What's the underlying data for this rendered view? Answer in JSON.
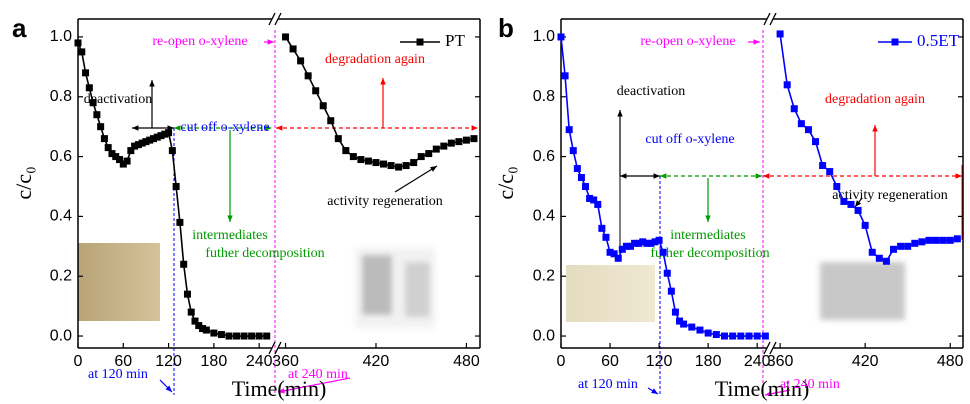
{
  "chart_data": [
    {
      "type": "line",
      "panel": "a",
      "x_label": "Time(min)",
      "y_label": "c/c₀",
      "xlim": [
        0,
        489
      ],
      "x_break": [
        257,
        355
      ],
      "ylim": [
        -0.04,
        1.06
      ],
      "xticks": [
        0,
        60,
        120,
        180,
        240,
        360,
        420,
        480
      ],
      "yticks": [
        {
          "value": 0,
          "label": "0.0"
        },
        {
          "value": 0.2,
          "label": "0.2"
        },
        {
          "value": 0.4,
          "label": "0.4"
        },
        {
          "value": 0.6,
          "label": "0.6"
        },
        {
          "value": 0.8,
          "label": "0.8"
        },
        {
          "value": 1,
          "label": "1.0"
        }
      ],
      "series": [
        {
          "name": "PT",
          "color": "#000000",
          "x": [
            0,
            5,
            10,
            15,
            20,
            25,
            30,
            35,
            40,
            45,
            50,
            55,
            60,
            65,
            70,
            75,
            80,
            85,
            90,
            95,
            100,
            105,
            110,
            115,
            120,
            125,
            130,
            135,
            140,
            145,
            150,
            155,
            160,
            165,
            170,
            180,
            190,
            200,
            210,
            220,
            230,
            240,
            250,
            360,
            365,
            370,
            375,
            380,
            385,
            390,
            395,
            400,
            405,
            410,
            415,
            420,
            425,
            430,
            435,
            440,
            445,
            450,
            455,
            460,
            465,
            470,
            475,
            480,
            485
          ],
          "values": [
            0.98,
            0.95,
            0.88,
            0.83,
            0.78,
            0.74,
            0.7,
            0.66,
            0.63,
            0.61,
            0.6,
            0.59,
            0.575,
            0.585,
            0.62,
            0.635,
            0.64,
            0.645,
            0.65,
            0.655,
            0.66,
            0.665,
            0.67,
            0.675,
            0.68,
            0.62,
            0.5,
            0.38,
            0.24,
            0.14,
            0.08,
            0.05,
            0.035,
            0.025,
            0.02,
            0.01,
            0.005,
            0,
            0,
            0,
            0,
            0,
            0,
            1,
            0.96,
            0.92,
            0.87,
            0.82,
            0.77,
            0.72,
            0.66,
            0.62,
            0.6,
            0.59,
            0.585,
            0.58,
            0.575,
            0.57,
            0.565,
            0.57,
            0.58,
            0.6,
            0.61,
            0.625,
            0.635,
            0.645,
            0.65,
            0.655,
            0.66
          ]
        }
      ],
      "annotations": [
        {
          "text": "re-open o-xylene",
          "color": "#ff00ff"
        },
        {
          "text": "deactivation",
          "color": "#000000"
        },
        {
          "text": "cut off o-xylene",
          "color": "#0000ff"
        },
        {
          "text": "degradation again",
          "color": "#ff0000"
        },
        {
          "text": "intermediates",
          "color": "#009900"
        },
        {
          "text": "futher decomposition",
          "color": "#009900"
        },
        {
          "text": "activity regeneration",
          "color": "#000000"
        },
        {
          "text": "at 120 min",
          "color": "#0000ff"
        },
        {
          "text": "at 240 min",
          "color": "#ff00ff"
        }
      ]
    },
    {
      "type": "line",
      "panel": "b",
      "x_label": "Time(min)",
      "y_label": "c/c₀",
      "xlim": [
        0,
        489
      ],
      "x_break": [
        252,
        355
      ],
      "ylim": [
        -0.04,
        1.06
      ],
      "xticks": [
        0,
        60,
        120,
        180,
        240,
        360,
        420,
        480
      ],
      "yticks": [
        {
          "value": 0,
          "label": "0.0"
        },
        {
          "value": 0.2,
          "label": "0.2"
        },
        {
          "value": 0.4,
          "label": "0.4"
        },
        {
          "value": 0.6,
          "label": "0.6"
        },
        {
          "value": 0.8,
          "label": "0.8"
        },
        {
          "value": 1,
          "label": "1.0"
        }
      ],
      "series": [
        {
          "name": "0.5ET",
          "color": "#0000ff",
          "x": [
            0,
            5,
            10,
            15,
            20,
            25,
            30,
            35,
            40,
            45,
            50,
            55,
            60,
            65,
            70,
            75,
            80,
            85,
            90,
            95,
            100,
            105,
            110,
            115,
            120,
            125,
            130,
            135,
            140,
            145,
            150,
            160,
            170,
            180,
            190,
            200,
            210,
            220,
            230,
            240,
            250,
            360,
            365,
            370,
            375,
            380,
            385,
            390,
            395,
            400,
            405,
            410,
            415,
            420,
            425,
            430,
            435,
            440,
            445,
            450,
            455,
            460,
            465,
            470,
            475,
            480,
            485
          ],
          "values": [
            1,
            0.87,
            0.69,
            0.62,
            0.56,
            0.53,
            0.5,
            0.46,
            0.455,
            0.44,
            0.36,
            0.33,
            0.28,
            0.275,
            0.26,
            0.29,
            0.3,
            0.3,
            0.31,
            0.31,
            0.315,
            0.31,
            0.31,
            0.315,
            0.32,
            0.28,
            0.21,
            0.15,
            0.08,
            0.05,
            0.04,
            0.03,
            0.02,
            0.01,
            0.005,
            0,
            0,
            0,
            0,
            0,
            0,
            1.01,
            0.84,
            0.76,
            0.71,
            0.69,
            0.65,
            0.57,
            0.55,
            0.5,
            0.45,
            0.44,
            0.42,
            0.37,
            0.28,
            0.26,
            0.25,
            0.29,
            0.3,
            0.3,
            0.31,
            0.315,
            0.32,
            0.32,
            0.32,
            0.32,
            0.325
          ]
        }
      ],
      "annotations": [
        {
          "text": "re-open o-xylene",
          "color": "#ff00ff"
        },
        {
          "text": "deactivation",
          "color": "#000000"
        },
        {
          "text": "cut off o-xylene",
          "color": "#0000ff"
        },
        {
          "text": "degradation again",
          "color": "#ff0000"
        },
        {
          "text": "intermediates",
          "color": "#009900"
        },
        {
          "text": "futher decomposition",
          "color": "#009900"
        },
        {
          "text": "activity regeneration",
          "color": "#000000"
        },
        {
          "text": "at 120 min",
          "color": "#0000ff"
        },
        {
          "text": "at 240 min",
          "color": "#ff00ff"
        }
      ]
    }
  ]
}
